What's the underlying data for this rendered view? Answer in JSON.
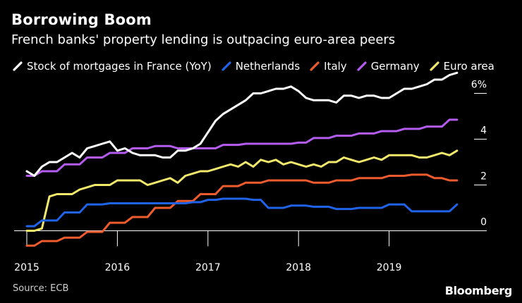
{
  "header": {
    "title": "Borrowing Boom",
    "subtitle": "French banks' property lending is outpacing euro-area peers"
  },
  "footer": {
    "source": "Source: ECB",
    "brand": "Bloomberg"
  },
  "chart_data": {
    "type": "line",
    "title": "Borrowing Boom",
    "subtitle": "French banks' property lending is outpacing euro-area peers",
    "xlabel": "",
    "ylabel": "",
    "x_ticks": [
      "2015",
      "2016",
      "2017",
      "2018",
      "2019"
    ],
    "y_ticks": [
      "0",
      "2",
      "4",
      "6%"
    ],
    "xlim": [
      2015.0,
      2020.0
    ],
    "ylim": [
      -1.0,
      7.0
    ],
    "grid": false,
    "legend_position": "top",
    "series": [
      {
        "name": "Stock of mortgages in France (YoY)",
        "color": "#ffffff",
        "x": [
          2015.0,
          2015.083,
          2015.167,
          2015.25,
          2015.333,
          2015.417,
          2015.5,
          2015.583,
          2015.667,
          2015.75,
          2015.833,
          2015.917,
          2016.0,
          2016.083,
          2016.167,
          2016.25,
          2016.333,
          2016.417,
          2016.5,
          2016.583,
          2016.667,
          2016.75,
          2016.833,
          2016.917,
          2017.0,
          2017.083,
          2017.167,
          2017.25,
          2017.333,
          2017.417,
          2017.5,
          2017.583,
          2017.667,
          2017.75,
          2017.833,
          2017.917,
          2018.0,
          2018.083,
          2018.167,
          2018.25,
          2018.333,
          2018.417,
          2018.5,
          2018.583,
          2018.667,
          2018.75,
          2018.833,
          2018.917,
          2019.0,
          2019.083,
          2019.167,
          2019.25,
          2019.333,
          2019.417,
          2019.5,
          2019.583,
          2019.667,
          2019.75
        ],
        "values": [
          2.6,
          2.4,
          2.8,
          3.0,
          3.0,
          3.2,
          3.4,
          3.2,
          3.6,
          3.7,
          3.8,
          3.9,
          3.5,
          3.6,
          3.4,
          3.3,
          3.3,
          3.3,
          3.2,
          3.2,
          3.5,
          3.5,
          3.6,
          3.8,
          4.3,
          4.8,
          5.1,
          5.3,
          5.5,
          5.7,
          6.0,
          6.0,
          6.1,
          6.2,
          6.2,
          6.3,
          6.1,
          5.8,
          5.7,
          5.7,
          5.7,
          5.6,
          5.9,
          5.9,
          5.8,
          5.9,
          5.9,
          5.8,
          5.8,
          6.0,
          6.2,
          6.2,
          6.3,
          6.4,
          6.6,
          6.6,
          6.8,
          6.9
        ]
      },
      {
        "name": "Netherlands",
        "color": "#1f63e8",
        "x": [
          2015.0,
          2015.083,
          2015.167,
          2015.25,
          2015.333,
          2015.417,
          2015.5,
          2015.583,
          2015.667,
          2015.75,
          2015.833,
          2015.917,
          2016.0,
          2016.083,
          2016.167,
          2016.25,
          2016.333,
          2016.417,
          2016.5,
          2016.583,
          2016.667,
          2016.75,
          2016.833,
          2016.917,
          2017.0,
          2017.083,
          2017.167,
          2017.25,
          2017.333,
          2017.417,
          2017.5,
          2017.583,
          2017.667,
          2017.75,
          2017.833,
          2017.917,
          2018.0,
          2018.083,
          2018.167,
          2018.25,
          2018.333,
          2018.417,
          2018.5,
          2018.583,
          2018.667,
          2018.75,
          2018.833,
          2018.917,
          2019.0,
          2019.083,
          2019.167,
          2019.25,
          2019.333,
          2019.417,
          2019.5,
          2019.583,
          2019.667,
          2019.75
        ],
        "values": [
          0.2,
          0.2,
          0.45,
          0.45,
          0.45,
          0.8,
          0.8,
          0.8,
          1.15,
          1.15,
          1.15,
          1.2,
          1.2,
          1.2,
          1.2,
          1.2,
          1.2,
          1.2,
          1.2,
          1.2,
          1.2,
          1.2,
          1.25,
          1.25,
          1.35,
          1.35,
          1.4,
          1.4,
          1.4,
          1.4,
          1.35,
          1.35,
          1.0,
          1.0,
          1.0,
          1.1,
          1.1,
          1.1,
          1.05,
          1.05,
          1.05,
          0.95,
          0.95,
          0.95,
          1.0,
          1.0,
          1.0,
          1.0,
          1.15,
          1.15,
          1.15,
          0.85,
          0.85,
          0.85,
          0.85,
          0.85,
          0.85,
          1.15
        ]
      },
      {
        "name": "Italy",
        "color": "#ee5b2c",
        "x": [
          2015.0,
          2015.083,
          2015.167,
          2015.25,
          2015.333,
          2015.417,
          2015.5,
          2015.583,
          2015.667,
          2015.75,
          2015.833,
          2015.917,
          2016.0,
          2016.083,
          2016.167,
          2016.25,
          2016.333,
          2016.417,
          2016.5,
          2016.583,
          2016.667,
          2016.75,
          2016.833,
          2016.917,
          2017.0,
          2017.083,
          2017.167,
          2017.25,
          2017.333,
          2017.417,
          2017.5,
          2017.583,
          2017.667,
          2017.75,
          2017.833,
          2017.917,
          2018.0,
          2018.083,
          2018.167,
          2018.25,
          2018.333,
          2018.417,
          2018.5,
          2018.583,
          2018.667,
          2018.75,
          2018.833,
          2018.917,
          2019.0,
          2019.083,
          2019.167,
          2019.25,
          2019.333,
          2019.417,
          2019.5,
          2019.583,
          2019.667,
          2019.75
        ],
        "values": [
          -0.65,
          -0.65,
          -0.45,
          -0.45,
          -0.45,
          -0.3,
          -0.3,
          -0.3,
          -0.05,
          -0.05,
          -0.05,
          0.35,
          0.35,
          0.35,
          0.6,
          0.6,
          0.6,
          1.0,
          1.0,
          1.0,
          1.3,
          1.3,
          1.3,
          1.6,
          1.6,
          1.6,
          1.95,
          1.95,
          1.95,
          2.1,
          2.1,
          2.1,
          2.2,
          2.2,
          2.2,
          2.2,
          2.2,
          2.2,
          2.1,
          2.1,
          2.1,
          2.2,
          2.2,
          2.2,
          2.3,
          2.3,
          2.3,
          2.3,
          2.4,
          2.4,
          2.4,
          2.45,
          2.45,
          2.45,
          2.3,
          2.3,
          2.2,
          2.2
        ]
      },
      {
        "name": "Germany",
        "color": "#b45cf0",
        "x": [
          2015.0,
          2015.083,
          2015.167,
          2015.25,
          2015.333,
          2015.417,
          2015.5,
          2015.583,
          2015.667,
          2015.75,
          2015.833,
          2015.917,
          2016.0,
          2016.083,
          2016.167,
          2016.25,
          2016.333,
          2016.417,
          2016.5,
          2016.583,
          2016.667,
          2016.75,
          2016.833,
          2016.917,
          2017.0,
          2017.083,
          2017.167,
          2017.25,
          2017.333,
          2017.417,
          2017.5,
          2017.583,
          2017.667,
          2017.75,
          2017.833,
          2017.917,
          2018.0,
          2018.083,
          2018.167,
          2018.25,
          2018.333,
          2018.417,
          2018.5,
          2018.583,
          2018.667,
          2018.75,
          2018.833,
          2018.917,
          2019.0,
          2019.083,
          2019.167,
          2019.25,
          2019.333,
          2019.417,
          2019.5,
          2019.583,
          2019.667,
          2019.75
        ],
        "values": [
          2.4,
          2.4,
          2.6,
          2.6,
          2.6,
          2.9,
          2.9,
          2.9,
          3.2,
          3.2,
          3.2,
          3.4,
          3.4,
          3.4,
          3.6,
          3.6,
          3.6,
          3.7,
          3.7,
          3.7,
          3.6,
          3.6,
          3.6,
          3.6,
          3.6,
          3.6,
          3.75,
          3.75,
          3.75,
          3.8,
          3.8,
          3.8,
          3.8,
          3.8,
          3.8,
          3.8,
          3.85,
          3.85,
          4.05,
          4.05,
          4.05,
          4.15,
          4.15,
          4.15,
          4.25,
          4.25,
          4.25,
          4.35,
          4.35,
          4.35,
          4.45,
          4.45,
          4.45,
          4.55,
          4.55,
          4.55,
          4.85,
          4.85
        ]
      },
      {
        "name": "Euro area",
        "color": "#f2e86a",
        "x": [
          2015.0,
          2015.083,
          2015.167,
          2015.25,
          2015.333,
          2015.417,
          2015.5,
          2015.583,
          2015.667,
          2015.75,
          2015.833,
          2015.917,
          2016.0,
          2016.083,
          2016.167,
          2016.25,
          2016.333,
          2016.417,
          2016.5,
          2016.583,
          2016.667,
          2016.75,
          2016.833,
          2016.917,
          2017.0,
          2017.083,
          2017.167,
          2017.25,
          2017.333,
          2017.417,
          2017.5,
          2017.583,
          2017.667,
          2017.75,
          2017.833,
          2017.917,
          2018.0,
          2018.083,
          2018.167,
          2018.25,
          2018.333,
          2018.417,
          2018.5,
          2018.583,
          2018.667,
          2018.75,
          2018.833,
          2018.917,
          2019.0,
          2019.083,
          2019.167,
          2019.25,
          2019.333,
          2019.417,
          2019.5,
          2019.583,
          2019.667,
          2019.75
        ],
        "values": [
          0.0,
          0.0,
          0.1,
          1.5,
          1.6,
          1.6,
          1.6,
          1.8,
          1.9,
          2.0,
          2.0,
          2.0,
          2.2,
          2.2,
          2.2,
          2.2,
          2.0,
          2.1,
          2.2,
          2.3,
          2.1,
          2.4,
          2.5,
          2.6,
          2.6,
          2.7,
          2.8,
          2.9,
          2.8,
          3.0,
          2.8,
          3.1,
          3.0,
          3.1,
          2.9,
          3.0,
          2.9,
          2.8,
          2.9,
          2.8,
          3.0,
          3.0,
          3.2,
          3.1,
          3.0,
          3.1,
          3.2,
          3.1,
          3.3,
          3.3,
          3.3,
          3.3,
          3.2,
          3.2,
          3.3,
          3.4,
          3.3,
          3.5
        ]
      }
    ]
  }
}
